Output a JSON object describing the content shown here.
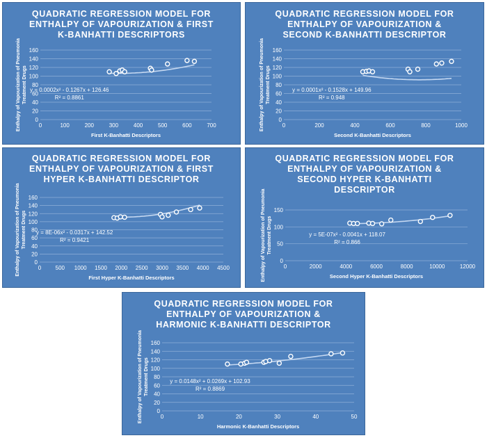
{
  "chart_data": [
    {
      "type": "scatter",
      "title_lines": [
        "QUADRATIC REGRESSION MODEL FOR",
        "ENTHALPY OF VAPOURIZATION & FIRST",
        "K-BANHATTI DESCRIPTORS"
      ],
      "xlabel": "First K-Banhatti Descriptors",
      "ylabel_lines": [
        "Enthalpy of Vapourization of Pneumonia",
        "Treatment Drugs"
      ],
      "xlim": [
        0,
        700
      ],
      "xticks": [
        0,
        100,
        200,
        300,
        400,
        500,
        600,
        700
      ],
      "ylim": [
        0,
        160
      ],
      "yticks": [
        0,
        20,
        40,
        60,
        80,
        100,
        120,
        140,
        160
      ],
      "x": [
        282,
        310,
        325,
        335,
        345,
        450,
        455,
        520,
        600,
        630
      ],
      "y": [
        110,
        106,
        112,
        114,
        110,
        118,
        114,
        128,
        136,
        134
      ],
      "fit": [
        0.0002,
        -0.1267,
        126.46
      ],
      "equation": "y = 0.0002x² - 0.1267x + 126.46",
      "r2": "R² = 0.8861"
    },
    {
      "type": "scatter",
      "title_lines": [
        "QUADRATIC REGRESSION MODEL FOR",
        "ENTHALPY OF VAPOURIZATION &",
        "SECOND K-BANHATTI DESCRIPTOR"
      ],
      "xlabel": "Second K-Banhatti Descriptors",
      "ylabel_lines": [
        "Enthalpy of Vapourization of Pneumonia",
        "Treatment Drugs"
      ],
      "xlim": [
        0,
        1000
      ],
      "xticks": [
        0,
        200,
        400,
        600,
        800,
        1000
      ],
      "ylim": [
        0,
        160
      ],
      "yticks": [
        0,
        20,
        40,
        60,
        80,
        100,
        120,
        140,
        160
      ],
      "x": [
        445,
        465,
        480,
        500,
        700,
        710,
        755,
        860,
        890,
        945
      ],
      "y": [
        110,
        111,
        112,
        110,
        116,
        110,
        116,
        128,
        130,
        134
      ],
      "fit": [
        0.0001,
        -0.1528,
        149.96
      ],
      "equation": "y = 0.0001x² - 0.1528x + 149.96",
      "r2": "R² = 0.948"
    },
    {
      "type": "scatter",
      "title_lines": [
        "QUADRATIC REGRESSION MODEL FOR",
        "ENTHALPY OF VAPOURIZATION & FIRST",
        "HYPER K-BANHATTI DESCRIPTOR"
      ],
      "xlabel": "First Hyper K-Banhatti Descriptors",
      "ylabel_lines": [
        "Enthalpy of Vapourization of Pneumonia",
        "Treatment Drugs"
      ],
      "xlim": [
        0,
        4500
      ],
      "xticks": [
        0,
        500,
        1000,
        1500,
        2000,
        2500,
        3000,
        3500,
        4000,
        4500
      ],
      "ylim": [
        0,
        160
      ],
      "yticks": [
        0,
        20,
        40,
        60,
        80,
        100,
        120,
        140,
        160
      ],
      "x": [
        1820,
        1900,
        1980,
        2080,
        2960,
        3000,
        3150,
        3350,
        3700,
        3920
      ],
      "y": [
        110,
        109,
        112,
        111,
        118,
        112,
        116,
        124,
        130,
        134
      ],
      "fit": [
        8e-06,
        -0.0317,
        142.52
      ],
      "equation": "y = 8E-06x² - 0.0317x + 142.52",
      "r2": "R² = 0.9421"
    },
    {
      "type": "scatter",
      "title_lines": [
        "QUADRATIC REGRESSION MODEL FOR",
        "ENTHALPY OF VAPOURIZATION &",
        "SECOND HYPER K-BANHATTI",
        "DESCRIPTOR"
      ],
      "xlabel": "Second Hyper K-Banhatti Descriptors",
      "ylabel_lines": [
        "Enthalpy of Vapourization of Pneumonia",
        "Treatment Drugs"
      ],
      "xlim": [
        0,
        12000
      ],
      "xticks": [
        0,
        2000,
        4000,
        6000,
        8000,
        10000,
        12000
      ],
      "ylim": [
        0,
        150
      ],
      "yticks": [
        0,
        50,
        100,
        150
      ],
      "x": [
        4250,
        4500,
        4750,
        5500,
        5750,
        6350,
        6950,
        8900,
        9700,
        10850
      ],
      "y": [
        111,
        110,
        110,
        111,
        110,
        109,
        120,
        116,
        128,
        134
      ],
      "fit": [
        5e-07,
        -0.0041,
        118.07
      ],
      "equation": "y = 5E-07x² - 0.0041x + 118.07",
      "r2": "R² = 0.866"
    },
    {
      "type": "scatter",
      "title_lines": [
        "QUADRATIC REGRESSION MODEL FOR",
        "ENTHALPY OF VAPOURIZATION &",
        "HARMONIC K-BANHATTI DESCRIPTOR"
      ],
      "xlabel": "Harmonic K-Banhatti Descriptors",
      "ylabel_lines": [
        "Enthalpy of Vapourization of Pneumonia",
        "Treatment Drugs"
      ],
      "xlim": [
        0,
        50
      ],
      "xticks": [
        0,
        10,
        20,
        30,
        40,
        50
      ],
      "ylim": [
        0,
        160
      ],
      "yticks": [
        0,
        20,
        40,
        60,
        80,
        100,
        120,
        140,
        160
      ],
      "x": [
        17,
        20.5,
        21.5,
        22,
        26.5,
        27,
        28,
        30.5,
        33.5,
        44,
        47
      ],
      "y": [
        110,
        110,
        112,
        114,
        114,
        116,
        118,
        112,
        128,
        134,
        136
      ],
      "fit": [
        0.0148,
        0.0269,
        102.93
      ],
      "equation": "y = 0.0148x² + 0.0269x + 102.93",
      "r2": "R² = 0.8869"
    }
  ]
}
